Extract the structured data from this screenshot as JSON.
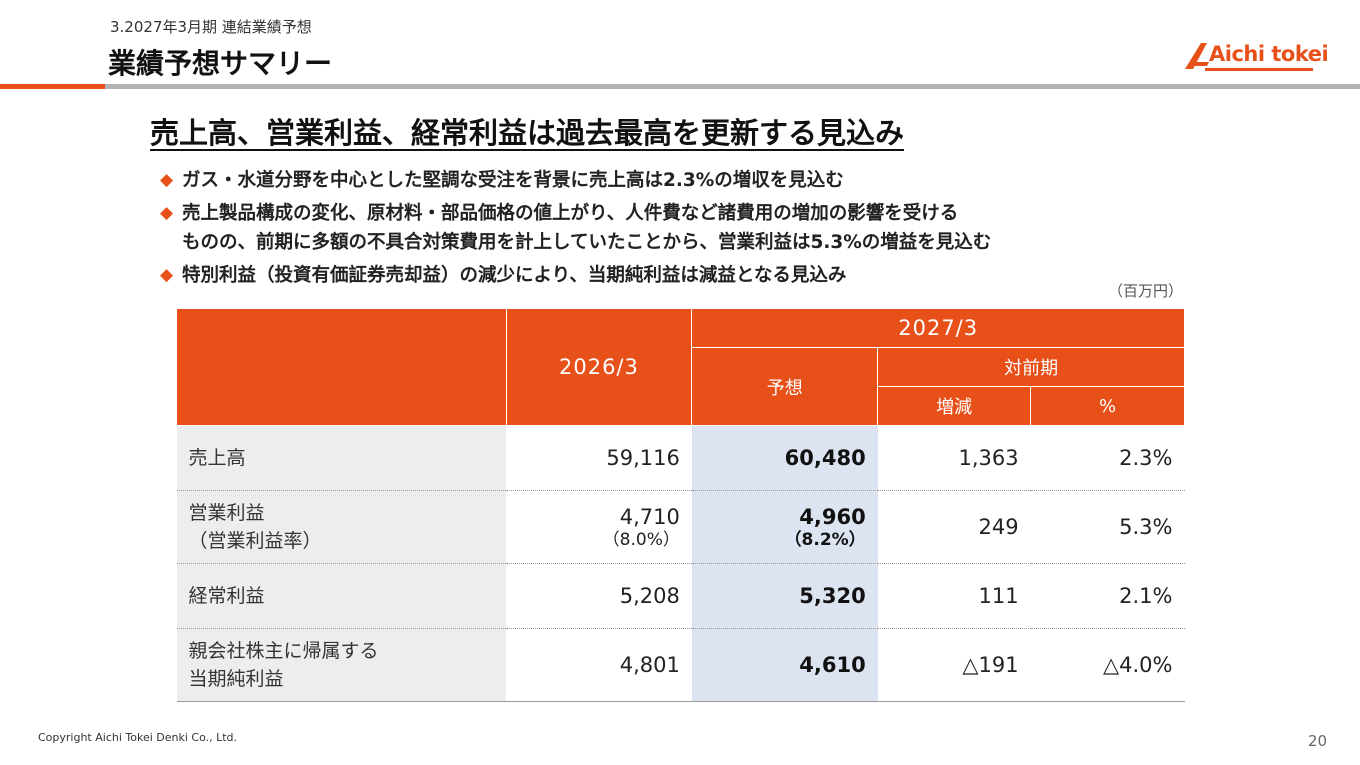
{
  "header": {
    "section_label": "3.2027年3月期 連結業績予想",
    "title": "業績予想サマリー",
    "logo_text": "Aichi tokei",
    "brand_color": "#e8501a"
  },
  "headline": "売上高、営業利益、経常利益は過去最高を更新する見込み",
  "bullets": [
    {
      "lines": [
        "ガス・水道分野を中心とした堅調な受注を背景に売上高は2.3%の増収を見込む"
      ]
    },
    {
      "lines": [
        "売上製品構成の変化、原材料・部品価格の値上がり、人件費など諸費用の増加の影響を受ける",
        "ものの、前期に多額の不具合対策費用を計上していたことから、営業利益は5.3%の増益を見込む"
      ]
    },
    {
      "lines": [
        "特別利益（投資有価証券売却益）の減少により、当期純利益は減益となる見込み"
      ]
    }
  ],
  "bullet_marker": "◆",
  "unit": "（百万円）",
  "table": {
    "headers": {
      "col_2026": "2026/3",
      "col_2027": "2027/3",
      "forecast": "予想",
      "yoy": "対前期",
      "change": "増減",
      "percent": "%"
    },
    "rows": [
      {
        "label": "売上高",
        "label2": "",
        "v2026": "59,116",
        "v2026_sub": "",
        "forecast": "60,480",
        "forecast_sub": "",
        "change": "1,363",
        "percent": "2.3%"
      },
      {
        "label": "営業利益",
        "label2": "（営業利益率）",
        "v2026": "4,710",
        "v2026_sub": "（8.0%）",
        "forecast": "4,960",
        "forecast_sub": "（8.2%）",
        "change": "249",
        "percent": "5.3%"
      },
      {
        "label": "経常利益",
        "label2": "",
        "v2026": "5,208",
        "v2026_sub": "",
        "forecast": "5,320",
        "forecast_sub": "",
        "change": "111",
        "percent": "2.1%"
      },
      {
        "label": "親会社株主に帰属する",
        "label2": "当期純利益",
        "v2026": "4,801",
        "v2026_sub": "",
        "forecast": "4,610",
        "forecast_sub": "",
        "change": "△191",
        "percent": "△4.0%"
      }
    ]
  },
  "footer": {
    "copyright": "Copyright Aichi Tokei Denki Co., Ltd.",
    "page_number": "20"
  }
}
